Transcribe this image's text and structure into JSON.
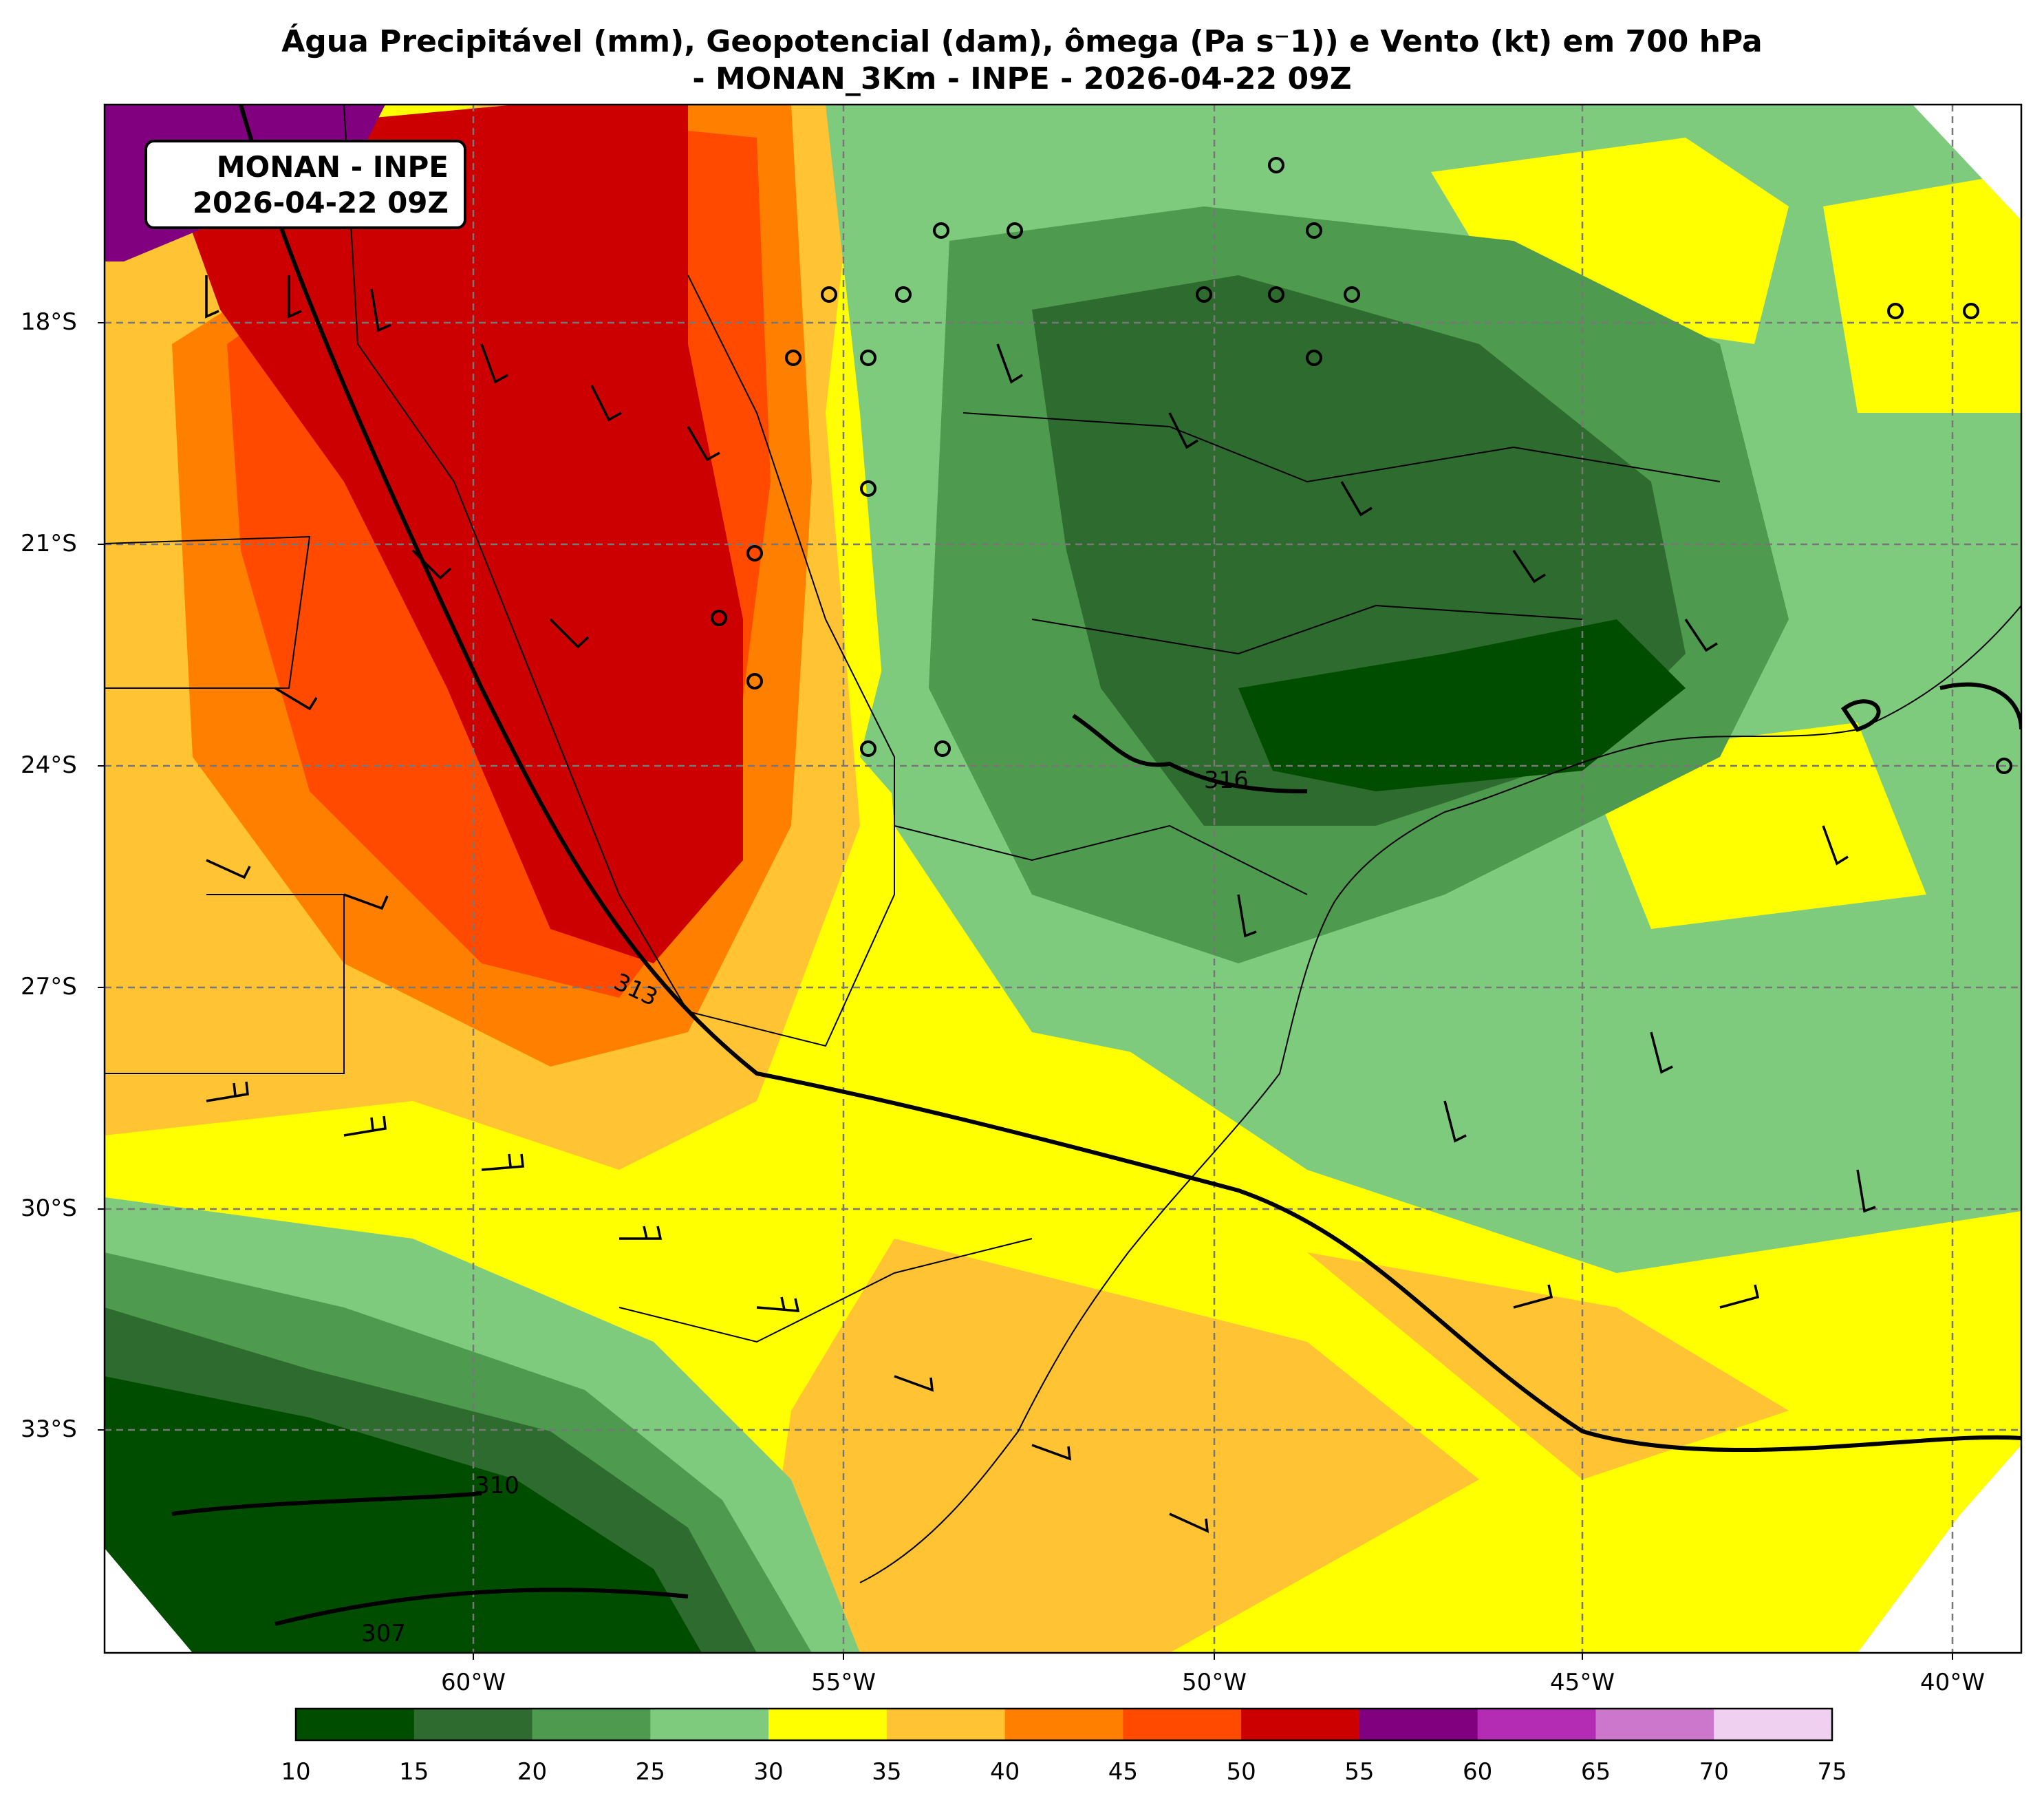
{
  "title": {
    "line1": "Água Precipitável (mm), Geopotencial (dam), ômega (Pa s⁻1)) e Vento (kt) em 700 hPa",
    "line2": "- MONAN_3Km - INPE - 2026-04-22 09Z"
  },
  "stamp": {
    "line1": "MONAN - INPE",
    "line2": "2026-04-22 09Z"
  },
  "axes": {
    "lat_ticks": [
      "18°S",
      "21°S",
      "24°S",
      "27°S",
      "30°S",
      "33°S"
    ],
    "lon_ticks": [
      "60°W",
      "55°W",
      "50°W",
      "45°W",
      "40°W"
    ]
  },
  "contour_labels": [
    "313",
    "316",
    "310",
    "307"
  ],
  "colorbar": {
    "ticks": [
      "10",
      "15",
      "20",
      "25",
      "30",
      "35",
      "40",
      "45",
      "50",
      "55",
      "60",
      "65",
      "70",
      "75"
    ],
    "colors": [
      "#004d00",
      "#2e6b2e",
      "#4e9a4e",
      "#7ecb7e",
      "#ffff00",
      "#ffc333",
      "#ff8000",
      "#ff4a00",
      "#cc0000",
      "#800080",
      "#b42cb4",
      "#cc77cc",
      "#f0d0f0"
    ]
  }
}
